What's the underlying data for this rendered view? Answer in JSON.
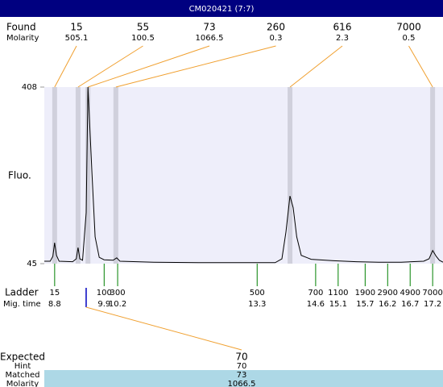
{
  "chart_data": {
    "type": "line",
    "title": "CM020421 (7:7)",
    "ylabel": "Fluo.",
    "ylim": [
      45,
      408
    ],
    "yticks": [
      45,
      408
    ],
    "xlim": [
      8.57,
      17.43
    ],
    "color": "#000000",
    "x": [
      8.57,
      8.7,
      8.76,
      8.8,
      8.84,
      8.9,
      9.2,
      9.28,
      9.32,
      9.36,
      9.42,
      9.5,
      9.54,
      9.58,
      9.63,
      9.7,
      9.79,
      9.9,
      10.1,
      10.18,
      10.25,
      11,
      12,
      13,
      13.7,
      13.85,
      13.94,
      14.03,
      14.1,
      14.18,
      14.28,
      14.5,
      15,
      15.5,
      16,
      16.5,
      17,
      17.12,
      17.2,
      17.28,
      17.35,
      17.43
    ],
    "values": [
      50,
      50,
      60,
      88,
      62,
      50,
      49,
      55,
      78,
      55,
      52,
      150,
      408,
      330,
      230,
      100,
      58,
      53,
      52,
      57,
      50,
      48,
      47,
      47,
      47,
      55,
      110,
      184,
      160,
      100,
      62,
      54,
      51,
      49,
      48,
      48,
      50,
      55,
      72,
      60,
      52,
      48
    ],
    "found": {
      "label": "Found",
      "sublabel": "Molarity",
      "sizes": [
        15,
        55,
        73,
        260,
        616,
        7000
      ],
      "molarities": [
        505.1,
        100.5,
        1066.5,
        0.3,
        2.3,
        0.5
      ],
      "times": [
        8.8,
        9.32,
        9.54,
        10.16,
        14.03,
        17.2
      ]
    },
    "ladder": {
      "label": "Ladder",
      "sublabel": "Mig. time",
      "sizes": [
        15,
        100,
        300,
        500,
        700,
        1100,
        1900,
        2900,
        4900,
        7000
      ],
      "times": [
        8.8,
        9.9,
        10.2,
        13.3,
        14.6,
        15.1,
        15.7,
        16.2,
        16.7,
        17.2
      ]
    },
    "expected": {
      "label": "Expected",
      "value": 70,
      "time": 9.5,
      "rows": [
        {
          "label": "Hint",
          "value": 70
        },
        {
          "label": "Matched",
          "value": 73
        },
        {
          "label": "Molarity",
          "value": 1066.5
        }
      ]
    }
  }
}
